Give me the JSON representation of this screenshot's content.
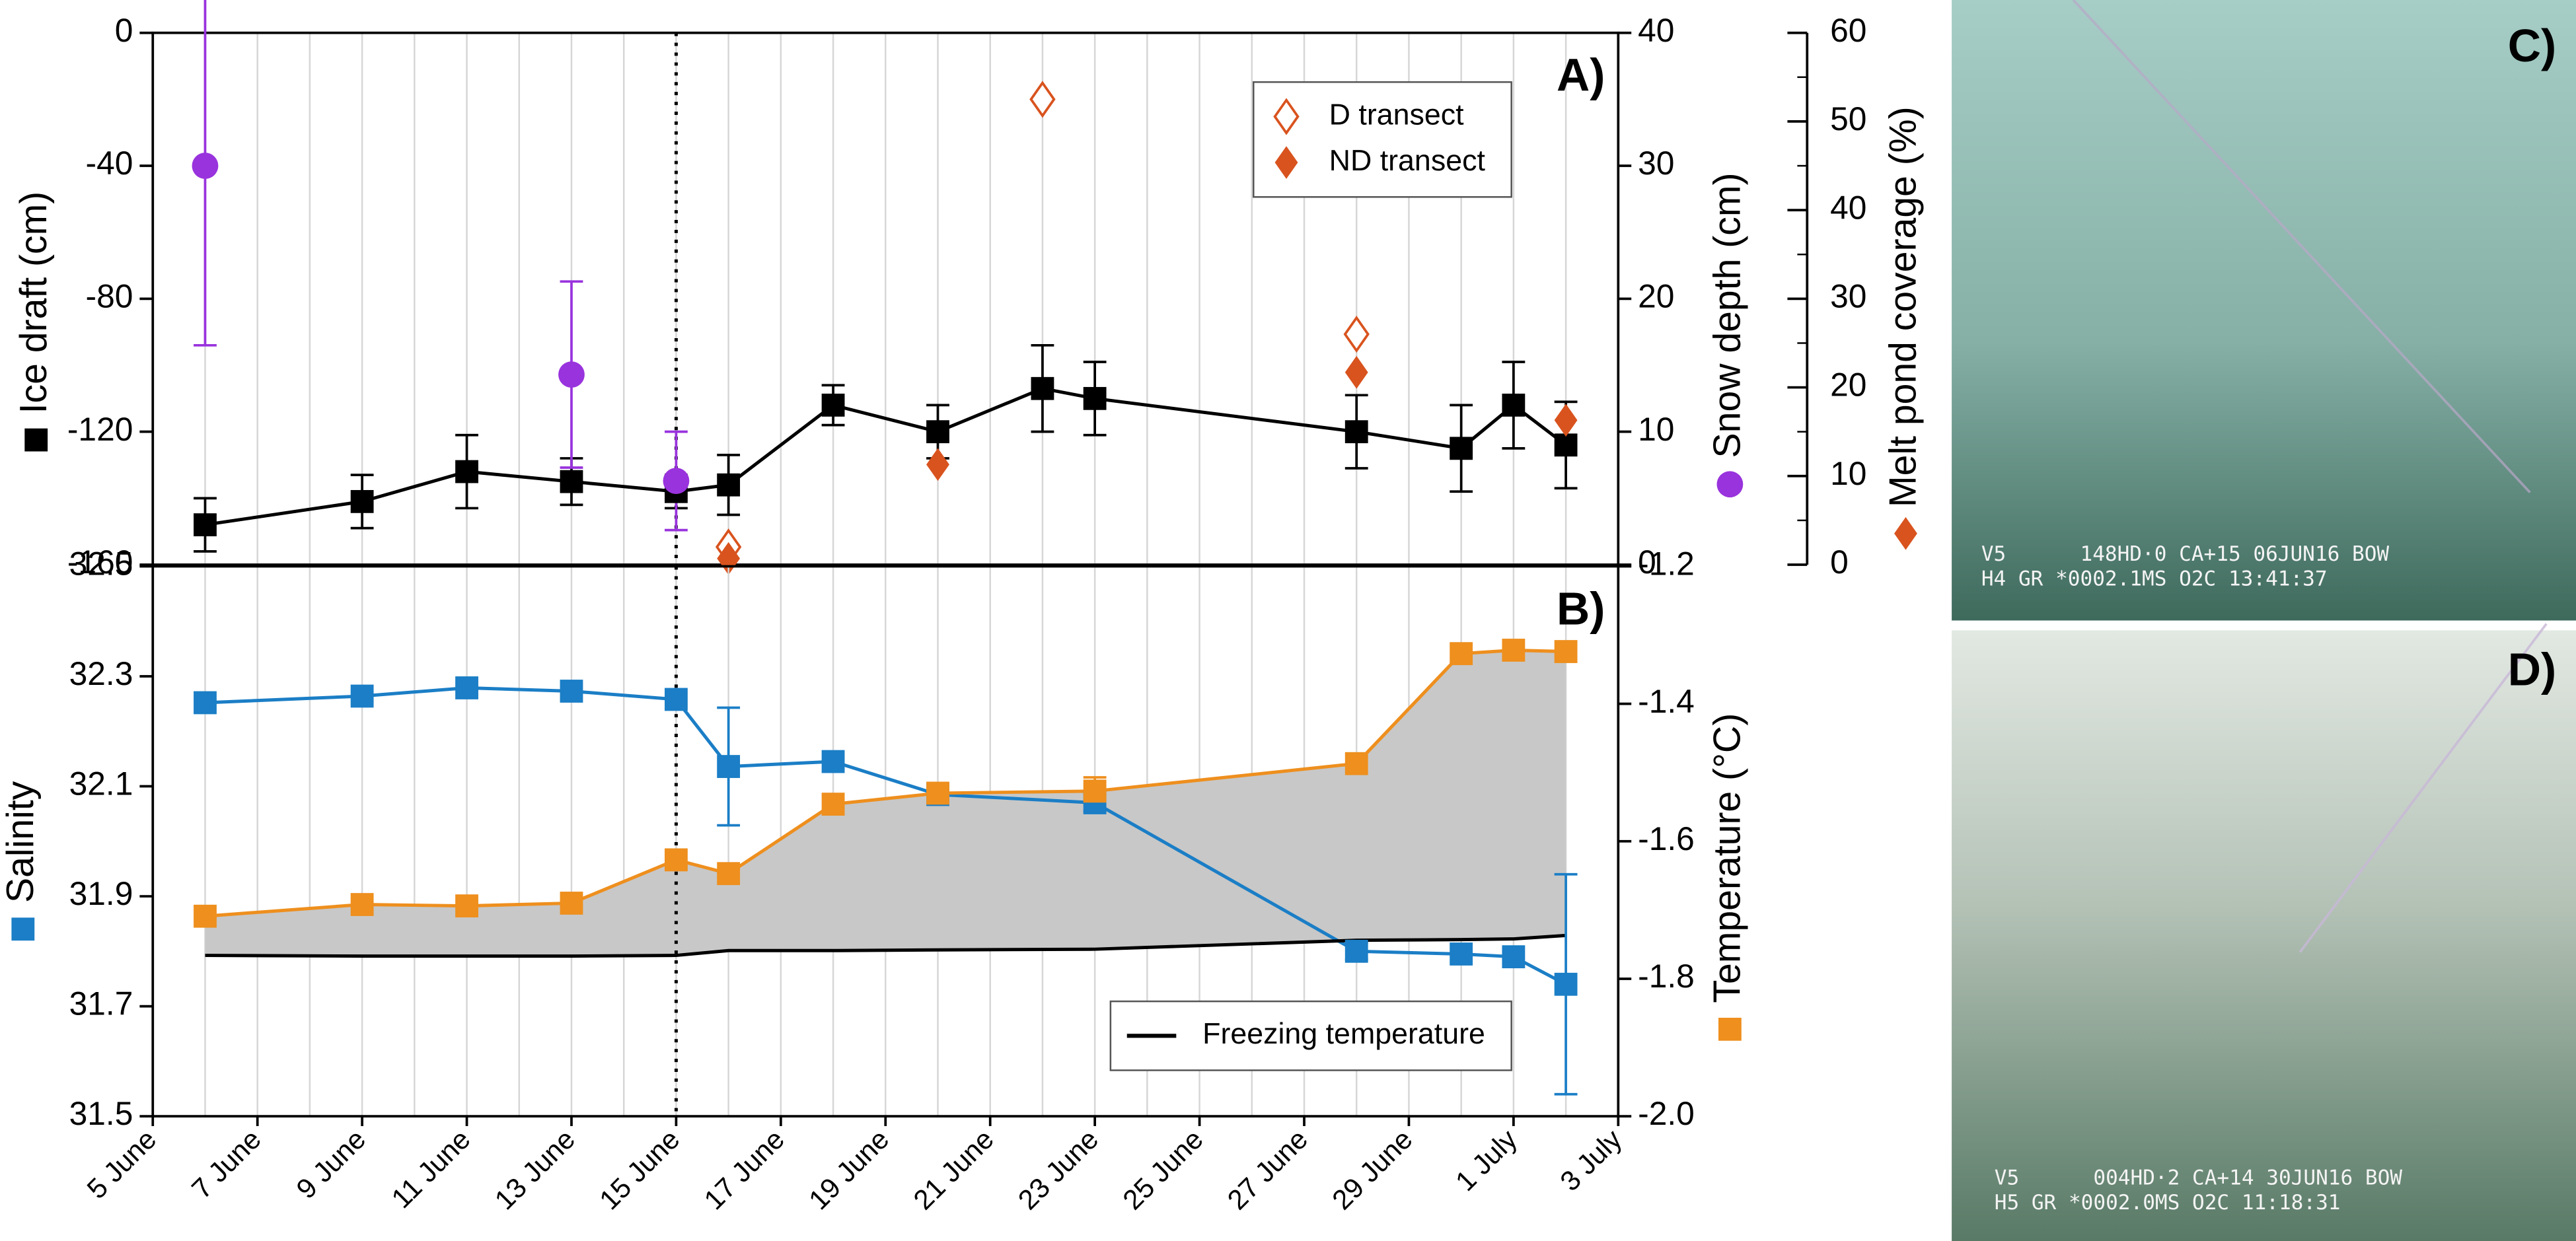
{
  "chart_data": [
    {
      "type": "line",
      "label": "A)",
      "xlim": [
        "5 June",
        "3 July"
      ],
      "xgrid": true,
      "vline": "15 June",
      "ylabel": "Ice draft (cm)",
      "ylim": [
        -160,
        0
      ],
      "yticks": [
        -160,
        -120,
        -80,
        -40,
        0
      ],
      "y2label": "Snow depth (cm)",
      "y2lim": [
        0,
        40
      ],
      "y2ticks": [
        0,
        10,
        20,
        30,
        40
      ],
      "y3label": "Melt pond coverage (%)",
      "y3lim": [
        0,
        60
      ],
      "y3ticks": [
        0,
        10,
        20,
        30,
        40,
        50,
        60
      ],
      "legend": "top-right",
      "series": [
        {
          "axis": "y",
          "marker": "square",
          "line": true,
          "color": "#000000",
          "x": [
            "6 June",
            "9 June",
            "11 June",
            "13 June",
            "15 June",
            "16 June",
            "18 June",
            "20 June",
            "22 June",
            "23 June",
            "28 June",
            "30 June",
            "1 July",
            "2 July"
          ],
          "values": [
            -148,
            -141,
            -132,
            -135,
            -138,
            -136,
            -112,
            -120,
            -107,
            -110,
            -120,
            -125,
            -112,
            -124
          ],
          "errors": [
            8,
            8,
            11,
            7,
            5,
            9,
            6,
            8,
            13,
            11,
            11,
            13,
            13,
            13
          ]
        },
        {
          "axis": "y2",
          "marker": "circle",
          "line": false,
          "color": "#9933dd",
          "x": [
            "6 June",
            "13 June",
            "15 June"
          ],
          "values": [
            30,
            14.3,
            6.3
          ],
          "errors": [
            13.5,
            7,
            3.7
          ]
        },
        {
          "name": "D transect",
          "axis": "y3",
          "marker": "diamond-open",
          "line": false,
          "color": "#d9531e",
          "x": [
            "16 June",
            "22 June",
            "28 June"
          ],
          "values": [
            2,
            52.5,
            26
          ]
        },
        {
          "name": "ND transect",
          "axis": "y3",
          "marker": "diamond",
          "line": false,
          "color": "#d9531e",
          "x": [
            "16 June",
            "20 June",
            "28 June",
            "2 July"
          ],
          "values": [
            0.7,
            11.3,
            21.7,
            16.3
          ]
        }
      ]
    },
    {
      "type": "line",
      "label": "B)",
      "xlim": [
        "5 June",
        "3 July"
      ],
      "xgrid": true,
      "vline": "15 June",
      "xticks": [
        "5 June",
        "7 June",
        "9 June",
        "11 June",
        "13 June",
        "15 June",
        "17 June",
        "19 June",
        "21 June",
        "23 June",
        "25 June",
        "27 June",
        "29 June",
        "1 July",
        "3 July"
      ],
      "ylabel": "Salinity",
      "ylim": [
        31.5,
        32.5
      ],
      "yticks": [
        31.5,
        31.7,
        31.9,
        32.1,
        32.3,
        32.5
      ],
      "y2label": "Temperature (°C)",
      "y2lim": [
        -2,
        -1.2
      ],
      "y2ticks": [
        {
          "value": -2,
          "label": "-2.0"
        },
        -1.8,
        -1.6,
        -1.4,
        -1.2
      ],
      "legend": "bottom-right",
      "fill_between": "#c8c8c8",
      "series": [
        {
          "axis": "y",
          "marker": "square",
          "line": true,
          "color": "#1b7ec6",
          "x": [
            "6 June",
            "9 June",
            "11 June",
            "13 June",
            "15 June",
            "16 June",
            "18 June",
            "20 June",
            "23 June",
            "28 June",
            "30 June",
            "1 July",
            "2 July"
          ],
          "values": [
            32.252,
            32.264,
            32.279,
            32.273,
            32.258,
            32.136,
            32.145,
            32.085,
            32.07,
            31.8,
            31.795,
            31.79,
            31.74
          ],
          "errors": [
            null,
            null,
            null,
            null,
            null,
            0.107,
            null,
            null,
            0.015,
            0.015,
            null,
            null,
            0.2
          ]
        },
        {
          "axis": "y2",
          "marker": "square",
          "line": true,
          "color": "#ee8f1e",
          "x": [
            "6 June",
            "9 June",
            "11 June",
            "13 June",
            "15 June",
            "16 June",
            "18 June",
            "20 June",
            "23 June",
            "28 June",
            "30 June",
            "1 July",
            "2 July"
          ],
          "values": [
            -1.709,
            -1.692,
            -1.694,
            -1.69,
            -1.627,
            -1.647,
            -1.546,
            -1.53,
            -1.527,
            -1.487,
            -1.327,
            -1.322,
            -1.324
          ],
          "errors": [
            null,
            null,
            null,
            null,
            null,
            null,
            null,
            null,
            0.02,
            null,
            null,
            null,
            null
          ]
        },
        {
          "name": "Freezing temperature",
          "axis": "y2",
          "line": true,
          "color": "#000000",
          "x": [
            "6 June",
            "9 June",
            "11 June",
            "13 June",
            "15 June",
            "16 June",
            "18 June",
            "20 June",
            "23 June",
            "28 June",
            "30 June",
            "1 July",
            "2 July"
          ],
          "values": [
            -1.766,
            -1.767,
            -1.767,
            -1.767,
            -1.766,
            -1.759,
            -1.759,
            -1.758,
            -1.757,
            -1.744,
            -1.743,
            -1.742,
            -1.737
          ]
        }
      ]
    }
  ],
  "photos": [
    {
      "label": "C)",
      "overlay": [
        "V5      148HD·0 CA+15 06JUN16 BOW",
        "H4 GR *0002.1MS O2C 13:41:37"
      ]
    },
    {
      "label": "D)",
      "overlay": [
        "V5      004HD·2 CA+14 30JUN16 BOW",
        "H5 GR *0002.0MS O2C 11:18:31"
      ]
    }
  ]
}
